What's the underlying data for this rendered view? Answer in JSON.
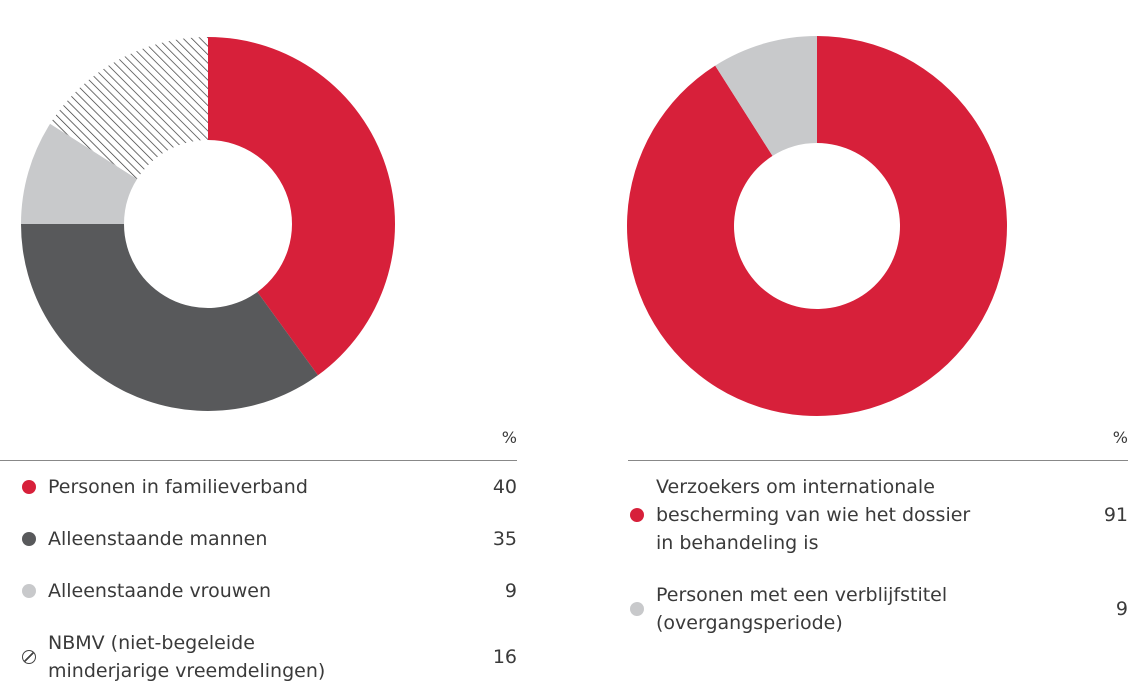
{
  "chart_data": [
    {
      "type": "pie",
      "unit": "%",
      "categories": [
        "Personen in familieverband",
        "Alleenstaande mannen",
        "Alleenstaande vrouwen",
        "NBMV (niet-begeleide minderjarige vreemdelingen)"
      ],
      "values": [
        40,
        35,
        9,
        16
      ],
      "colors": [
        "#d7203a",
        "#58595b",
        "#c8c9cb",
        "hatch"
      ]
    },
    {
      "type": "pie",
      "unit": "%",
      "categories": [
        "Verzoekers om internationale bescherming van wie het dossier in behandeling is",
        "Personen met een verblijfstitel (overgangsperiode)"
      ],
      "values": [
        91,
        9
      ],
      "colors": [
        "#d7203a",
        "#c8c9cb"
      ]
    }
  ]
}
